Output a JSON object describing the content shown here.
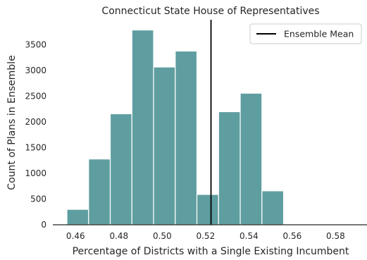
{
  "chart_data": {
    "type": "bar",
    "title": "Connecticut State House of Representatives",
    "xlabel": "Percentage of Districts with a Single Existing Incumbent",
    "ylabel": "Count of Plans in Ensemble",
    "xlim": [
      0.4495,
      0.5945
    ],
    "ylim": [
      0,
      3990
    ],
    "x_ticks": [
      0.46,
      0.48,
      0.5,
      0.52,
      0.54,
      0.56,
      0.58
    ],
    "x_tick_labels": [
      "0.46",
      "0.48",
      "0.50",
      "0.52",
      "0.54",
      "0.56",
      "0.58"
    ],
    "y_ticks": [
      0,
      500,
      1000,
      1500,
      2000,
      2500,
      3000,
      3500
    ],
    "y_tick_labels": [
      "0",
      "500",
      "1000",
      "1500",
      "2000",
      "2500",
      "3000",
      "3500"
    ],
    "bins": [
      {
        "start": 0.456,
        "end": 0.466,
        "count": 300
      },
      {
        "start": 0.466,
        "end": 0.476,
        "count": 1280
      },
      {
        "start": 0.476,
        "end": 0.486,
        "count": 2160
      },
      {
        "start": 0.486,
        "end": 0.496,
        "count": 3790
      },
      {
        "start": 0.496,
        "end": 0.506,
        "count": 3070
      },
      {
        "start": 0.506,
        "end": 0.516,
        "count": 3380
      },
      {
        "start": 0.516,
        "end": 0.526,
        "count": 590
      },
      {
        "start": 0.526,
        "end": 0.536,
        "count": 2200
      },
      {
        "start": 0.536,
        "end": 0.546,
        "count": 2560
      },
      {
        "start": 0.546,
        "end": 0.556,
        "count": 660
      }
    ],
    "ensemble_mean": 0.5225,
    "legend": {
      "position": "top-right",
      "entries": [
        "Ensemble Mean"
      ]
    },
    "grid": false,
    "colors": {
      "bar_fill": "#5f9ea0",
      "bar_edge": "#ffffff",
      "mean_line": "#000000",
      "axis": "#262626"
    }
  }
}
